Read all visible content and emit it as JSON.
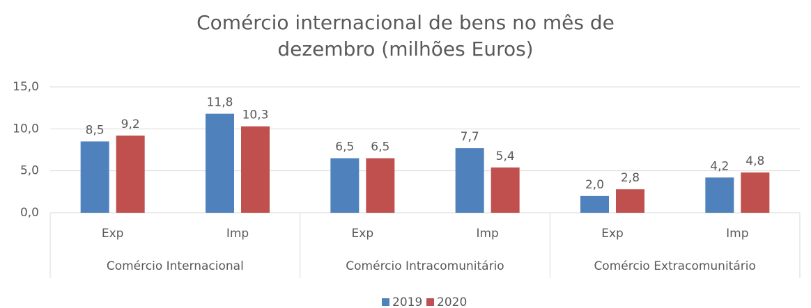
{
  "chart_data": {
    "type": "bar",
    "title": "Comércio internacional de bens no mês de dezembro (milhões Euros)",
    "groups": [
      "Comércio Internacional",
      "Comércio Intracomunitário",
      "Comércio Extracomunitário"
    ],
    "categories": [
      "Exp",
      "Imp",
      "Exp",
      "Imp",
      "Exp",
      "Imp"
    ],
    "series": [
      {
        "name": "2019",
        "color": "#4f81bd",
        "values": [
          8.5,
          11.8,
          6.5,
          7.7,
          2.0,
          4.2
        ],
        "value_labels": [
          "8,5",
          "11,8",
          "6,5",
          "7,7",
          "2,0",
          "4,2"
        ]
      },
      {
        "name": "2020",
        "color": "#c0504d",
        "values": [
          9.2,
          10.3,
          6.5,
          5.4,
          2.8,
          4.8
        ],
        "value_labels": [
          "9,2",
          "10,3",
          "6,5",
          "5,4",
          "2,8",
          "4,8"
        ]
      }
    ],
    "ylim": [
      0,
      15
    ],
    "yticks": [
      {
        "value": 0,
        "label": "0,0"
      },
      {
        "value": 5,
        "label": "5,0"
      },
      {
        "value": 10,
        "label": "10,0"
      },
      {
        "value": 15,
        "label": "15,0"
      }
    ],
    "grid": true,
    "legend": "bottom"
  }
}
